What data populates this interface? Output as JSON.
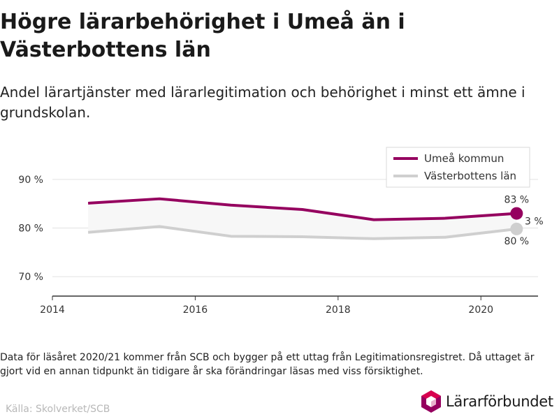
{
  "title": "Högre lärarbehörighet i Umeå än i Västerbottens län",
  "subtitle": "Andel lärartjänster med lärarlegitimation och behörighet i minst ett ämne i grundskolan.",
  "note": "Data för läsåret 2020/21 kommer från SCB och bygger på ett uttag från Legitimationsregistret. Då uttaget är gjort vid en annan tidpunkt än tidigare år ska förändringar läsas med viss försiktighet.",
  "source": "Källa: Skolverket/SCB",
  "brand": {
    "name": "Lärarförbundet",
    "logo_icon": "lararforbundet-logo-icon"
  },
  "colors": {
    "umea": "#95005f",
    "lan": "#cfcfcf",
    "gap_fill": "#f7f7f7",
    "grid": "#e2e2e2",
    "axis": "#333333"
  },
  "chart_data": {
    "type": "line",
    "x": [
      2014.5,
      2015.5,
      2016.5,
      2017.5,
      2018.5,
      2019.5,
      2020.5
    ],
    "series": [
      {
        "name": "Umeå kommun",
        "values": [
          85.1,
          86.0,
          84.7,
          83.8,
          81.7,
          82.0,
          83.0
        ]
      },
      {
        "name": "Västerbottens län",
        "values": [
          79.1,
          80.3,
          78.3,
          78.2,
          77.8,
          78.1,
          79.8
        ]
      }
    ],
    "xlim": [
      2014,
      2020.8
    ],
    "ylim": [
      66,
      95
    ],
    "xticks": [
      2014,
      2016,
      2018,
      2020
    ],
    "xtick_labels": [
      "2014",
      "2016",
      "2018",
      "2020"
    ],
    "yticks": [
      70,
      80,
      90
    ],
    "ytick_labels": [
      "70 %",
      "80 %",
      "90 %"
    ],
    "grid": true,
    "legend": "top-right",
    "annotations": [
      {
        "series": "Umeå kommun",
        "x": 2020.5,
        "text": "83 %"
      },
      {
        "series": "Västerbottens län",
        "x": 2020.5,
        "text": "80 %"
      },
      {
        "series": "gap",
        "x": 2020.5,
        "text": "3 %"
      }
    ]
  }
}
